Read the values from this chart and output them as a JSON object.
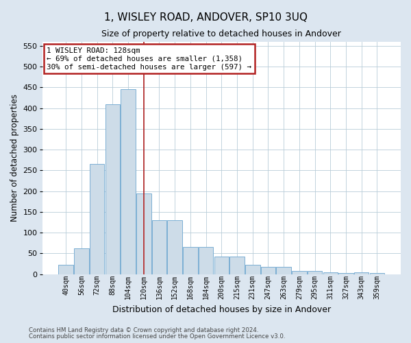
{
  "title": "1, WISLEY ROAD, ANDOVER, SP10 3UQ",
  "subtitle": "Size of property relative to detached houses in Andover",
  "xlabel": "Distribution of detached houses by size in Andover",
  "ylabel": "Number of detached properties",
  "footnote1": "Contains HM Land Registry data © Crown copyright and database right 2024.",
  "footnote2": "Contains public sector information licensed under the Open Government Licence v3.0.",
  "bins": [
    "40sqm",
    "56sqm",
    "72sqm",
    "88sqm",
    "104sqm",
    "120sqm",
    "136sqm",
    "152sqm",
    "168sqm",
    "184sqm",
    "200sqm",
    "215sqm",
    "231sqm",
    "247sqm",
    "263sqm",
    "279sqm",
    "295sqm",
    "311sqm",
    "327sqm",
    "343sqm",
    "359sqm"
  ],
  "values": [
    22,
    62,
    265,
    410,
    445,
    195,
    130,
    130,
    65,
    65,
    42,
    42,
    22,
    18,
    18,
    8,
    7,
    5,
    2,
    5,
    3
  ],
  "bar_color": "#cddce8",
  "bar_edge_color": "#7bafd4",
  "bg_color": "#dce6f0",
  "plot_bg_color": "#ffffff",
  "grid_color": "#b8ccd8",
  "annotation_text1": "1 WISLEY ROAD: 128sqm",
  "annotation_text2": "← 69% of detached houses are smaller (1,358)",
  "annotation_text3": "30% of semi-detached houses are larger (597) →",
  "red_line_color": "#b22222",
  "red_line_x": 5.0,
  "ylim": [
    0,
    560
  ],
  "yticks": [
    0,
    50,
    100,
    150,
    200,
    250,
    300,
    350,
    400,
    450,
    500,
    550
  ]
}
